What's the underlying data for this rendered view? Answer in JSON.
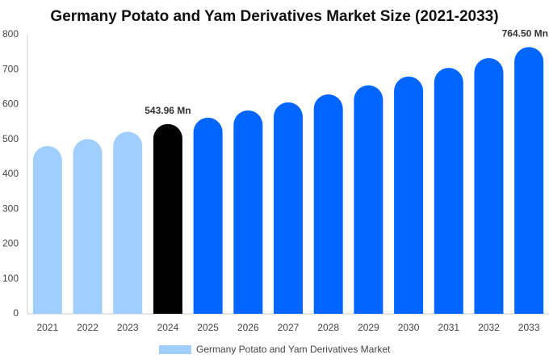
{
  "chart_data": {
    "type": "bar",
    "title": "Germany Potato and Yam Derivatives Market Size (2021-2033)",
    "categories": [
      "2021",
      "2022",
      "2023",
      "2024",
      "2025",
      "2026",
      "2027",
      "2028",
      "2029",
      "2030",
      "2031",
      "2032",
      "2033"
    ],
    "series": [
      {
        "name": "Germany Potato and Yam Derivatives Market",
        "color": "#a0cfff",
        "values": [
          481,
          501,
          522,
          543.96,
          562,
          583,
          606,
          629,
          655,
          680,
          705,
          733,
          764.5
        ],
        "value_labels": [
          null,
          null,
          null,
          "543.96 Mn",
          null,
          null,
          null,
          null,
          null,
          null,
          null,
          null,
          "764.50 Mn"
        ],
        "colors": [
          "#a0cfff",
          "#a0cfff",
          "#a0cfff",
          "#000000",
          "#0066ff",
          "#0066ff",
          "#0066ff",
          "#0066ff",
          "#0066ff",
          "#0066ff",
          "#0066ff",
          "#0066ff",
          "#0066ff"
        ]
      }
    ],
    "ylim": [
      0,
      800
    ],
    "yticks": [
      0,
      100,
      200,
      300,
      400,
      500,
      600,
      700,
      800
    ],
    "grid": false
  }
}
